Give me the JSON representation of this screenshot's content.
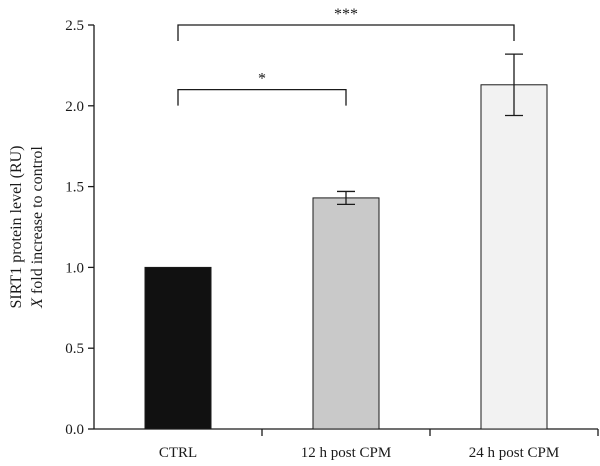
{
  "chart_data": {
    "type": "bar",
    "categories": [
      "CTRL",
      "12 h post CPM",
      "24 h post CPM"
    ],
    "values": [
      1.0,
      1.43,
      2.13
    ],
    "errors": [
      0,
      0.04,
      0.19
    ],
    "bar_colors": [
      "#111111",
      "#c9c9c9",
      "#f2f2f2"
    ],
    "ylabel_line1": "SIRT1 protein level (RU)",
    "ylabel_line2_var": "X",
    "ylabel_line2_rest": " fold increase to control",
    "ylim": [
      0,
      2.5
    ],
    "yticks": [
      "0.0",
      "0.5",
      "1.0",
      "1.5",
      "2.0",
      "2.5"
    ],
    "significance": [
      {
        "from": 0,
        "to": 1,
        "label": "*",
        "level": 2.1
      },
      {
        "from": 0,
        "to": 2,
        "label": "***",
        "level": 2.5
      }
    ]
  }
}
